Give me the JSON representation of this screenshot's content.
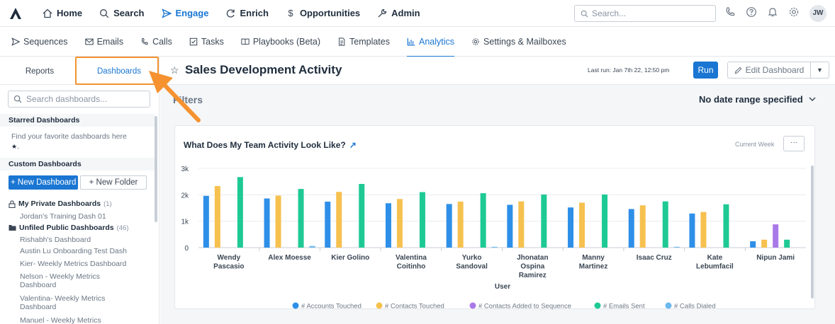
{
  "topnav": {
    "items": [
      {
        "label": "Home",
        "icon": "home-icon"
      },
      {
        "label": "Search",
        "icon": "search-icon"
      },
      {
        "label": "Engage",
        "icon": "send-icon",
        "active": true
      },
      {
        "label": "Enrich",
        "icon": "refresh-icon"
      },
      {
        "label": "Opportunities",
        "icon": "dollar-icon"
      },
      {
        "label": "Admin",
        "icon": "wrench-icon"
      }
    ],
    "search_placeholder": "Search...",
    "avatar_initials": "JW"
  },
  "subnav": {
    "items": [
      {
        "label": "Sequences",
        "icon": "send-icon"
      },
      {
        "label": "Emails",
        "icon": "mail-icon"
      },
      {
        "label": "Calls",
        "icon": "phone-icon"
      },
      {
        "label": "Tasks",
        "icon": "checkbox-icon"
      },
      {
        "label": "Playbooks (Beta)",
        "icon": "book-icon"
      },
      {
        "label": "Templates",
        "icon": "document-icon"
      },
      {
        "label": "Analytics",
        "icon": "bar-chart-icon",
        "active": true
      },
      {
        "label": "Settings & Mailboxes",
        "icon": "gear-icon"
      }
    ]
  },
  "sidebar": {
    "tabs": [
      "Reports",
      "Dashboards"
    ],
    "search_placeholder": "Search dashboards...",
    "starred_title": "Starred Dashboards",
    "starred_msg": "Find your favorite dashboards here",
    "starred_glyph": "★.",
    "custom_title": "Custom Dashboards",
    "new_dashboard": "+ New Dashboard",
    "new_folder": "+ New Folder",
    "private_folder": {
      "label": "My Private Dashboards",
      "count": "(1)"
    },
    "private_items": [
      "Jordan's Training Dash 01"
    ],
    "public_folder": {
      "label": "Unfiled Public Dashboards",
      "count": "(46)"
    },
    "public_items": [
      "Rishabh's Dashboard",
      "Austin Lu Onboarding Test Dash",
      "Kier- Weekly Metrics Dashboard",
      "Nelson - Weekly Metrics Dashboard",
      "Valentina- Weekly Metrics Dashboard",
      "Manuel - Weekly Metrics"
    ]
  },
  "dashboard": {
    "title": "Sales Development Activity",
    "last_run": "Last run: Jan 7th 22, 12:50 pm",
    "run_label": "Run",
    "edit_label": "Edit Dashboard",
    "filters_label": "Filters",
    "date_range": "No date range specified",
    "card": {
      "title": "What Does My Team Activity Look Like?",
      "external_glyph": "↗",
      "period": "Current Week",
      "more_glyph": "···"
    }
  },
  "chart_data": {
    "type": "bar",
    "xlabel": "User",
    "ylabel": "",
    "ylim": [
      0,
      3000
    ],
    "yticks": [
      "0",
      "1k",
      "2k",
      "3k"
    ],
    "categories": [
      [
        "Wendy",
        "Pascasio"
      ],
      [
        "Alex Moesse"
      ],
      [
        "Kier Golino"
      ],
      [
        "Valentina",
        "Coitinho"
      ],
      [
        "Yurko",
        "Sandoval"
      ],
      [
        "Jhonatan",
        "Ospina",
        "Ramirez"
      ],
      [
        "Manny",
        "Martinez"
      ],
      [
        "Isaac Cruz"
      ],
      [
        "Kate",
        "Lebumfacil"
      ],
      [
        "Nipun Jami"
      ]
    ],
    "series": [
      {
        "name": "# Accounts Touched",
        "color": "#2e8fe8",
        "values": [
          1960,
          1860,
          1740,
          1680,
          1650,
          1620,
          1520,
          1460,
          1290,
          240
        ]
      },
      {
        "name": "# Contacts Touched",
        "color": "#f6c14f",
        "values": [
          2330,
          1970,
          2110,
          1840,
          1740,
          1750,
          1700,
          1600,
          1350,
          300
        ]
      },
      {
        "name": "# Contacts Added to Sequence",
        "color": "#a979e8",
        "values": [
          0,
          0,
          0,
          0,
          0,
          0,
          0,
          0,
          0,
          880
        ]
      },
      {
        "name": "# Emails Sent",
        "color": "#1ec994",
        "values": [
          2670,
          2220,
          2410,
          2100,
          2060,
          2010,
          2010,
          1750,
          1640,
          300
        ]
      },
      {
        "name": "# Calls Dialed",
        "color": "#6cb8ee",
        "values": [
          0,
          60,
          0,
          0,
          30,
          0,
          0,
          30,
          0,
          0
        ]
      }
    ],
    "legend_position": "bottom"
  }
}
